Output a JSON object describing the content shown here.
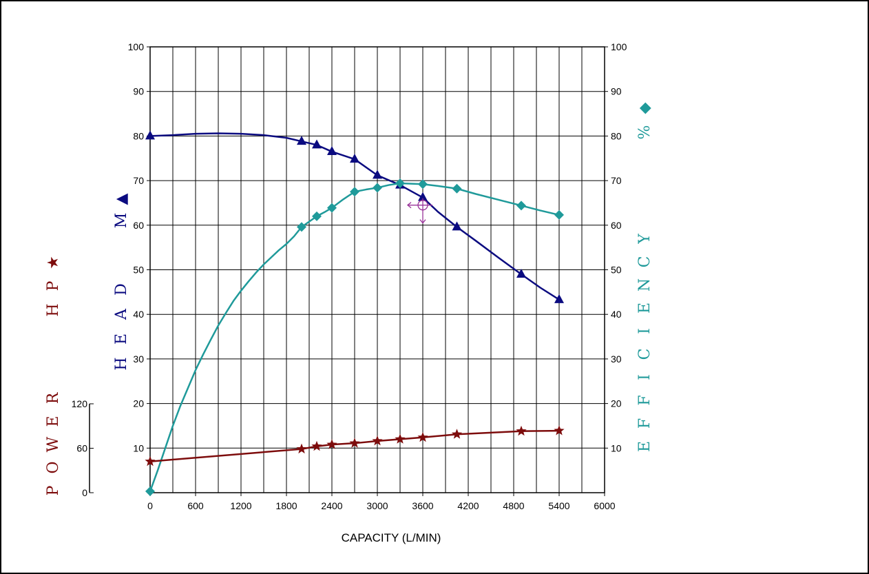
{
  "colors": {
    "head": "#0b0b80",
    "efficiency": "#1f9a9a",
    "power": "#7d0c0c",
    "marker": "#993399",
    "grid": "#000000"
  },
  "labels": {
    "head": [
      "H",
      "E",
      "A",
      "D",
      "M"
    ],
    "head_marker": "▲",
    "efficiency": [
      "E",
      "F",
      "F",
      "I",
      "C",
      "I",
      "E",
      "N",
      "C",
      "Y"
    ],
    "efficiency_unit": "%",
    "efficiency_marker": "◆",
    "power": [
      "P",
      "O",
      "W",
      "E",
      "R"
    ],
    "power_unit": [
      "H",
      "P"
    ],
    "power_marker": "★"
  },
  "chart_data": {
    "type": "line",
    "xlabel": "CAPACITY (L/MIN)",
    "x_ticks": [
      0,
      600,
      1200,
      1800,
      2400,
      3000,
      3600,
      4200,
      4800,
      5400,
      6000
    ],
    "xlim": [
      0,
      6000
    ],
    "y_left_ticks": [
      10,
      20,
      30,
      40,
      50,
      60,
      70,
      80,
      90,
      100
    ],
    "y_right_ticks": [
      10,
      20,
      30,
      40,
      50,
      60,
      70,
      80,
      90,
      100
    ],
    "ylim": [
      0,
      100
    ],
    "power_axis": {
      "ticks": [
        0,
        60,
        120
      ],
      "range": [
        0,
        120
      ]
    },
    "grid": true,
    "series": [
      {
        "key": "head",
        "marker": "triangle",
        "x": [
          0,
          2000,
          2200,
          2400,
          2700,
          3000,
          3300,
          3600,
          4050,
          4900,
          5400
        ],
        "y": [
          80,
          78.8,
          78,
          76.5,
          74.8,
          71.2,
          69,
          66.2,
          59.6,
          49,
          43.3
        ]
      },
      {
        "key": "efficiency",
        "marker": "diamond",
        "x": [
          0,
          2000,
          2200,
          2400,
          2700,
          3000,
          3300,
          3600,
          4050,
          4900,
          5400
        ],
        "y": [
          0.3,
          59.6,
          62,
          63.9,
          67.5,
          68.4,
          69.4,
          69.2,
          68.2,
          64.4,
          62.3
        ]
      },
      {
        "key": "power",
        "marker": "star",
        "x": [
          0,
          2000,
          2200,
          2400,
          2700,
          3000,
          3300,
          3600,
          4050,
          4900,
          5400
        ],
        "y": [
          7,
          9.8,
          10.4,
          10.8,
          11.1,
          11.6,
          12,
          12.4,
          13.1,
          13.8,
          13.9
        ]
      }
    ],
    "head_curve": {
      "x": [
        0,
        300,
        600,
        900,
        1200,
        1500,
        1800,
        2000,
        2200,
        2400,
        2700,
        3000,
        3300,
        3600,
        3800,
        4050,
        4300,
        4600,
        4900,
        5150,
        5400
      ],
      "y": [
        80,
        80.2,
        80.5,
        80.6,
        80.5,
        80.2,
        79.6,
        78.8,
        78,
        76.5,
        74.8,
        71.2,
        69,
        66.2,
        63,
        59.6,
        56.5,
        52.7,
        49,
        46,
        43.3
      ]
    },
    "efficiency_curve": {
      "x": [
        0,
        100,
        200,
        300,
        400,
        500,
        600,
        700,
        800,
        900,
        1000,
        1100,
        1200,
        1300,
        1400,
        1500,
        1600,
        1700,
        1800,
        1900,
        2000,
        2100,
        2200,
        2300,
        2400,
        2550,
        2700,
        2850,
        3000,
        3150,
        3300,
        3450,
        3600,
        3800,
        4050,
        4300,
        4600,
        4900,
        5150,
        5400
      ],
      "y": [
        0.3,
        5,
        10,
        15,
        19.5,
        23.5,
        27.5,
        31,
        34.3,
        37.5,
        40.3,
        43,
        45.3,
        47.4,
        49.4,
        51.2,
        52.8,
        54.4,
        55.8,
        57.5,
        59.6,
        60.8,
        62,
        62.9,
        63.9,
        65.8,
        67.5,
        68,
        68.4,
        69,
        69.4,
        69.3,
        69.2,
        68.8,
        68.2,
        67,
        65.7,
        64.4,
        63.3,
        62.3
      ]
    },
    "marker_point": {
      "x": 3600,
      "y": 64.5
    }
  }
}
